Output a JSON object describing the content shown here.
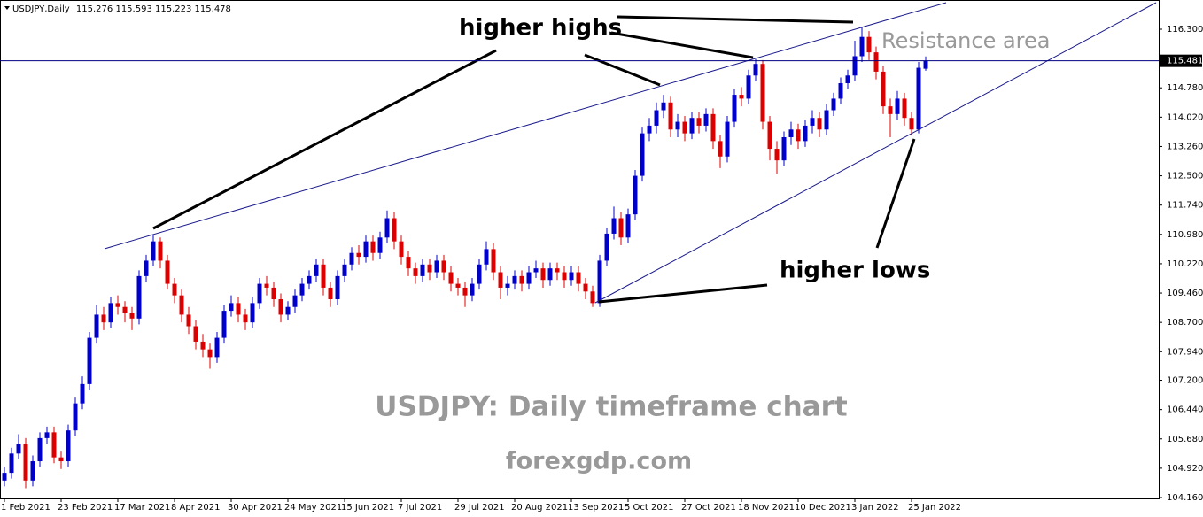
{
  "chart_data": {
    "type": "candlestick",
    "symbol": "USDJPY,Daily",
    "categories": [
      "1 Feb 2021",
      null,
      null,
      null,
      null,
      null,
      null,
      null,
      "23 Feb 2021",
      null,
      null,
      null,
      null,
      null,
      null,
      null,
      "17 Mar 2021",
      null,
      null,
      null,
      null,
      null,
      null,
      null,
      "8 Apr 2021",
      null,
      null,
      null,
      null,
      null,
      null,
      null,
      "30 Apr 2021",
      null,
      null,
      null,
      null,
      null,
      null,
      null,
      "24 May 2021",
      null,
      null,
      null,
      null,
      null,
      null,
      null,
      "15 Jun 2021",
      null,
      null,
      null,
      null,
      null,
      null,
      null,
      "7 Jul 2021",
      null,
      null,
      null,
      null,
      null,
      null,
      null,
      "29 Jul 2021",
      null,
      null,
      null,
      null,
      null,
      null,
      null,
      "20 Aug 2021",
      null,
      null,
      null,
      null,
      null,
      null,
      null,
      "13 Sep 2021",
      null,
      null,
      null,
      null,
      null,
      null,
      null,
      "5 Oct 2021",
      null,
      null,
      null,
      null,
      null,
      null,
      null,
      "27 Oct 2021",
      null,
      null,
      null,
      null,
      null,
      null,
      null,
      "18 Nov 2021",
      null,
      null,
      null,
      null,
      null,
      null,
      null,
      "10 Dec 2021",
      null,
      null,
      null,
      null,
      null,
      null,
      null,
      "3 Jan 2022",
      null,
      null,
      null,
      null,
      null,
      null,
      null,
      "25 Jan 2022",
      null,
      null
    ],
    "open": [
      104.6,
      104.8,
      105.3,
      105.55,
      104.6,
      105.1,
      105.7,
      105.85,
      105.2,
      105.1,
      105.9,
      106.6,
      107.1,
      108.3,
      108.9,
      108.7,
      109.2,
      109.1,
      108.95,
      108.8,
      109.9,
      110.3,
      110.8,
      110.3,
      109.7,
      109.4,
      108.9,
      108.6,
      108.2,
      108.0,
      107.8,
      108.3,
      109.0,
      109.2,
      108.9,
      108.7,
      109.2,
      109.7,
      109.6,
      109.3,
      108.9,
      109.1,
      109.4,
      109.7,
      109.9,
      110.2,
      109.6,
      109.3,
      109.9,
      110.2,
      110.5,
      110.4,
      110.8,
      110.5,
      110.9,
      111.4,
      110.8,
      110.4,
      110.1,
      109.9,
      110.2,
      110.0,
      110.3,
      110.0,
      109.7,
      109.6,
      109.4,
      109.7,
      110.2,
      110.6,
      110.0,
      109.6,
      109.7,
      109.9,
      109.7,
      110.0,
      110.1,
      109.8,
      110.1,
      110.0,
      109.8,
      110.0,
      109.7,
      109.5,
      109.2,
      110.3,
      111.0,
      111.4,
      110.9,
      111.5,
      112.5,
      113.6,
      113.8,
      114.2,
      114.4,
      113.7,
      113.9,
      113.6,
      114.0,
      113.8,
      114.1,
      113.4,
      113.0,
      113.9,
      114.6,
      114.5,
      115.1,
      115.4,
      113.9,
      113.2,
      112.9,
      113.5,
      113.7,
      113.4,
      113.8,
      114.0,
      113.7,
      114.2,
      114.5,
      114.9,
      115.1,
      115.6,
      116.1,
      115.7,
      115.2,
      114.3,
      114.1,
      114.5,
      114.0,
      113.7,
      115.276
    ],
    "high": [
      104.95,
      105.45,
      105.8,
      105.7,
      105.25,
      105.85,
      106.0,
      106.0,
      105.35,
      106.05,
      106.75,
      107.3,
      108.45,
      109.15,
      109.1,
      109.35,
      109.4,
      109.25,
      109.1,
      110.05,
      110.45,
      110.97,
      110.9,
      110.45,
      109.85,
      109.55,
      109.1,
      108.75,
      108.4,
      108.15,
      108.45,
      109.15,
      109.4,
      109.35,
      109.05,
      109.35,
      109.85,
      109.9,
      109.75,
      109.45,
      109.25,
      109.55,
      109.85,
      110.05,
      110.35,
      110.35,
      109.75,
      110.05,
      110.35,
      110.65,
      110.7,
      110.95,
      110.95,
      111.05,
      111.6,
      111.55,
      110.95,
      110.55,
      110.25,
      110.35,
      110.35,
      110.45,
      110.45,
      110.15,
      109.85,
      109.75,
      109.85,
      110.35,
      110.8,
      110.75,
      110.15,
      109.9,
      110.05,
      110.05,
      110.15,
      110.3,
      110.25,
      110.25,
      110.25,
      110.15,
      110.15,
      110.15,
      109.85,
      109.65,
      110.45,
      111.15,
      111.7,
      111.55,
      111.65,
      112.65,
      113.75,
      114.0,
      114.4,
      114.6,
      114.55,
      114.1,
      114.05,
      114.15,
      114.15,
      114.25,
      114.25,
      113.55,
      114.05,
      114.75,
      114.8,
      115.25,
      115.52,
      115.5,
      114.05,
      113.4,
      113.65,
      113.9,
      113.85,
      113.95,
      114.2,
      114.15,
      114.35,
      114.65,
      115.05,
      115.25,
      116.0,
      116.35,
      116.25,
      115.85,
      115.35,
      114.5,
      114.7,
      114.65,
      114.15,
      115.45,
      115.593
    ],
    "low": [
      104.45,
      104.65,
      105.15,
      104.4,
      104.45,
      104.95,
      105.55,
      105.05,
      104.9,
      104.95,
      105.75,
      106.45,
      106.95,
      108.15,
      108.5,
      108.55,
      108.9,
      108.7,
      108.5,
      108.65,
      109.75,
      110.15,
      110.1,
      109.55,
      109.2,
      108.7,
      108.4,
      108.0,
      107.8,
      107.5,
      107.65,
      108.15,
      108.85,
      108.7,
      108.5,
      108.55,
      109.05,
      109.4,
      109.1,
      108.7,
      108.75,
      108.95,
      109.25,
      109.55,
      109.75,
      109.4,
      109.1,
      109.15,
      109.75,
      110.05,
      110.2,
      110.25,
      110.3,
      110.35,
      110.75,
      110.6,
      110.2,
      109.9,
      109.7,
      109.75,
      109.8,
      109.85,
      109.8,
      109.5,
      109.4,
      109.1,
      109.25,
      109.55,
      110.05,
      109.8,
      109.3,
      109.4,
      109.55,
      109.5,
      109.55,
      109.85,
      109.6,
      109.65,
      109.8,
      109.6,
      109.65,
      109.5,
      109.3,
      109.1,
      109.1,
      110.15,
      110.85,
      110.7,
      110.75,
      111.35,
      112.35,
      113.4,
      113.6,
      114.0,
      113.5,
      113.5,
      113.4,
      113.45,
      113.6,
      113.65,
      113.2,
      112.7,
      112.85,
      113.75,
      114.3,
      114.35,
      114.95,
      113.7,
      112.9,
      112.55,
      112.75,
      113.3,
      113.2,
      113.25,
      113.6,
      113.5,
      113.55,
      114.05,
      114.35,
      114.75,
      114.95,
      115.45,
      115.5,
      115.0,
      114.1,
      113.5,
      113.95,
      113.8,
      113.55,
      113.6,
      115.223
    ],
    "close": [
      104.8,
      105.3,
      105.55,
      104.6,
      105.1,
      105.7,
      105.85,
      105.2,
      105.1,
      105.9,
      106.6,
      107.1,
      108.3,
      108.9,
      108.7,
      109.2,
      109.1,
      108.95,
      108.8,
      109.9,
      110.3,
      110.8,
      110.3,
      109.7,
      109.4,
      108.9,
      108.6,
      108.2,
      108.0,
      107.8,
      108.3,
      109.0,
      109.2,
      108.9,
      108.7,
      109.2,
      109.7,
      109.6,
      109.3,
      108.9,
      109.1,
      109.4,
      109.7,
      109.9,
      110.2,
      109.6,
      109.3,
      109.9,
      110.2,
      110.5,
      110.4,
      110.8,
      110.5,
      110.9,
      111.4,
      110.8,
      110.4,
      110.1,
      109.9,
      110.2,
      110.0,
      110.3,
      110.0,
      109.7,
      109.6,
      109.4,
      109.7,
      110.2,
      110.6,
      110.0,
      109.6,
      109.7,
      109.9,
      109.7,
      110.0,
      110.1,
      109.8,
      110.1,
      110.0,
      109.8,
      110.0,
      109.7,
      109.5,
      109.2,
      110.3,
      111.0,
      111.4,
      110.9,
      111.5,
      112.5,
      113.6,
      113.8,
      114.2,
      114.4,
      113.7,
      113.9,
      113.6,
      114.0,
      113.8,
      114.1,
      113.4,
      113.0,
      113.9,
      114.6,
      114.5,
      115.1,
      115.4,
      113.9,
      113.2,
      112.9,
      113.5,
      113.7,
      113.4,
      113.8,
      114.0,
      113.7,
      114.2,
      114.5,
      114.9,
      115.1,
      115.6,
      116.1,
      115.7,
      115.2,
      114.3,
      114.1,
      114.5,
      114.0,
      113.7,
      115.3,
      115.478
    ],
    "bull_color": "#0000cc",
    "bear_color": "#dd0000",
    "ylim": [
      104.137,
      117.057
    ],
    "yticks": [
      {
        "value": 104.16,
        "label": "104.160"
      },
      {
        "value": 104.92,
        "label": "104.920"
      },
      {
        "value": 105.68,
        "label": "105.680"
      },
      {
        "value": 106.44,
        "label": "106.440"
      },
      {
        "value": 107.2,
        "label": "107.200"
      },
      {
        "value": 107.94,
        "label": "107.940"
      },
      {
        "value": 108.7,
        "label": "108.700"
      },
      {
        "value": 109.46,
        "label": "109.460"
      },
      {
        "value": 110.22,
        "label": "110.220"
      },
      {
        "value": 110.98,
        "label": "110.980"
      },
      {
        "value": 111.74,
        "label": "111.740"
      },
      {
        "value": 112.5,
        "label": "112.500"
      },
      {
        "value": 113.26,
        "label": "113.260"
      },
      {
        "value": 114.02,
        "label": "114.020"
      },
      {
        "value": 114.78,
        "label": "114.780"
      },
      {
        "value": 116.3,
        "label": "116.300"
      }
    ],
    "price_line": 115.481,
    "price_line_color": "#000080",
    "annotations": {
      "higher_highs": "higher highs",
      "higher_lows": "higher lows",
      "resistance": "Resistance area",
      "caption": "USDJPY: Daily timeframe chart",
      "site": "forexgdp.com"
    }
  }
}
